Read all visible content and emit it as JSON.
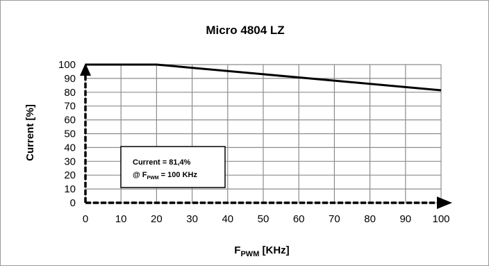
{
  "chart_data": {
    "type": "line",
    "title": "Micro 4804  LZ",
    "xlabel": {
      "main": "F",
      "sub": "PWM",
      "rest": " [KHz]"
    },
    "ylabel": "Current [%]",
    "xlim": [
      0,
      100
    ],
    "ylim": [
      0,
      100
    ],
    "x_ticks": [
      0,
      10,
      20,
      30,
      40,
      50,
      60,
      70,
      80,
      90,
      100
    ],
    "y_ticks": [
      0,
      10,
      20,
      30,
      40,
      50,
      60,
      70,
      80,
      90,
      100
    ],
    "grid": true,
    "series": [
      {
        "x": [
          0,
          20,
          100
        ],
        "y": [
          100,
          100,
          81.4
        ]
      }
    ],
    "annotation": {
      "line1": "Current = 81,4%",
      "line2_prefix": "@ F",
      "line2_sub": "PWM",
      "line2_suffix": " = 100 KHz"
    }
  }
}
